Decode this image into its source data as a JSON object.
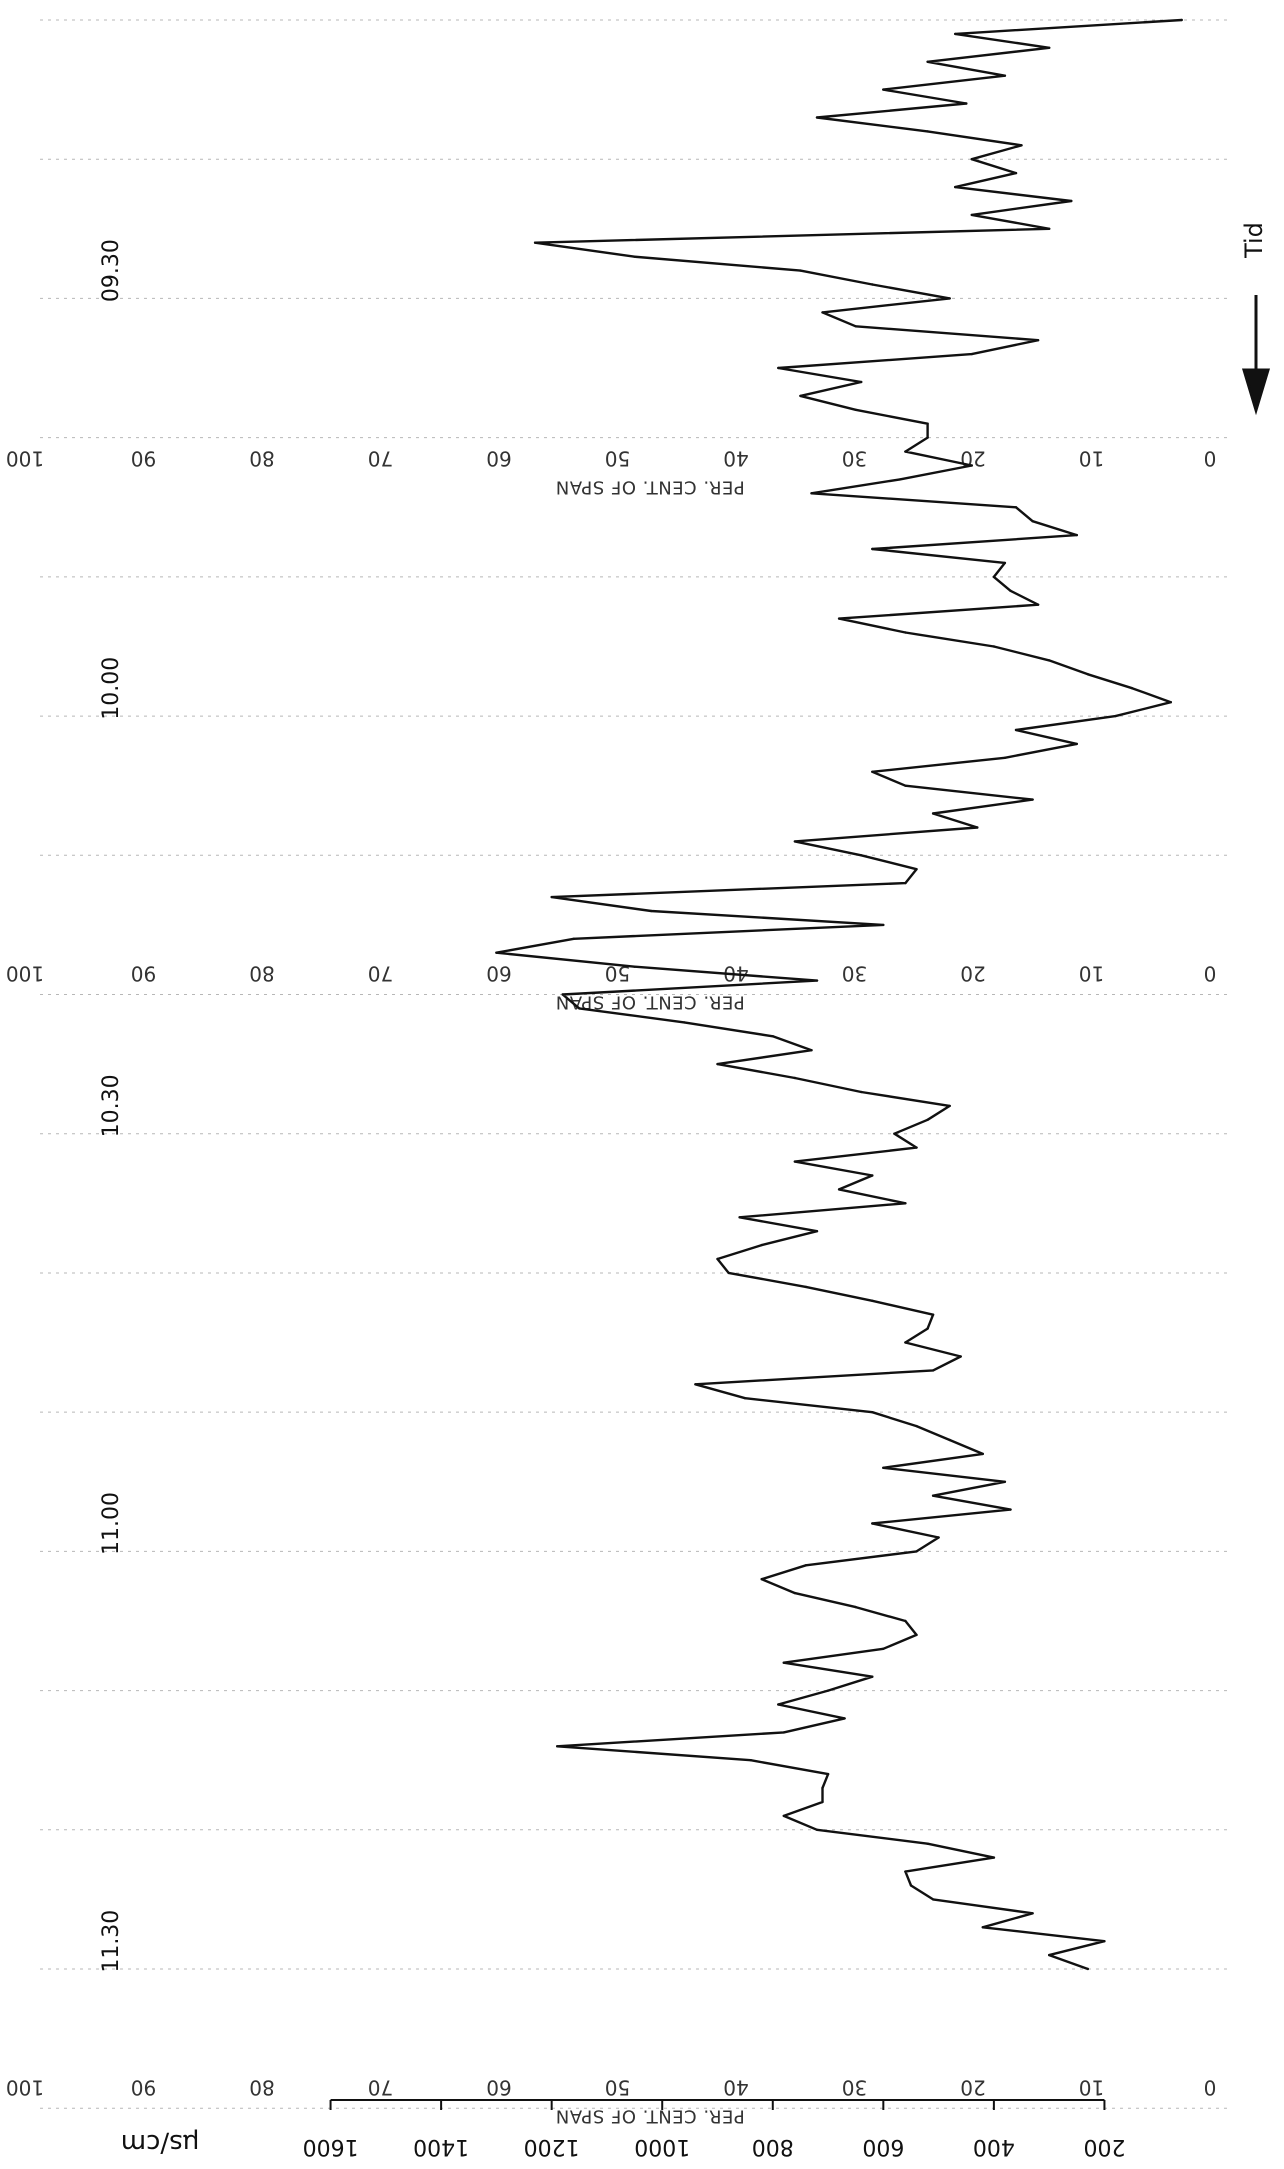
{
  "chart_data": {
    "type": "line",
    "orientation": "vertical-time",
    "title": "",
    "time_axis": {
      "label": "Tid",
      "direction": "top-to-bottom",
      "ticks": [
        "09.30",
        "10.00",
        "10.30",
        "11.00",
        "11.30"
      ],
      "range": [
        "09.12",
        "11.45"
      ]
    },
    "value_axis": {
      "unit": "µs/cm",
      "tick_labels": [
        "200",
        "400",
        "600",
        "800",
        "1000",
        "1200",
        "1400",
        "1600"
      ],
      "ticks": [
        200,
        400,
        600,
        800,
        1000,
        1200,
        1400,
        1600
      ],
      "range": [
        0,
        1800
      ]
    },
    "chart_paper_scale": {
      "caption": "PER. CENT. OF SPAN",
      "ticks": [
        "0",
        "10",
        "20",
        "30",
        "40",
        "50",
        "60",
        "70",
        "80",
        "90",
        "100"
      ]
    },
    "series": [
      {
        "name": "",
        "x_unit": "clock time",
        "points": [
          [
            "09.12",
            60
          ],
          [
            "09.13",
            470
          ],
          [
            "09.14",
            300
          ],
          [
            "09.15",
            520
          ],
          [
            "09.16",
            380
          ],
          [
            "09.17",
            600
          ],
          [
            "09.18",
            450
          ],
          [
            "09.19",
            720
          ],
          [
            "09.20",
            520
          ],
          [
            "09.21",
            350
          ],
          [
            "09.22",
            440
          ],
          [
            "09.23",
            360
          ],
          [
            "09.24",
            470
          ],
          [
            "09.25",
            260
          ],
          [
            "09.26",
            440
          ],
          [
            "09.27",
            300
          ],
          [
            "09.28",
            1230
          ],
          [
            "09.29",
            1050
          ],
          [
            "09.30",
            750
          ],
          [
            "09.31",
            620
          ],
          [
            "09.32",
            480
          ],
          [
            "09.33",
            710
          ],
          [
            "09.34",
            650
          ],
          [
            "09.35",
            320
          ],
          [
            "09.36",
            440
          ],
          [
            "09.37",
            790
          ],
          [
            "09.38",
            640
          ],
          [
            "09.39",
            750
          ],
          [
            "09.40",
            650
          ],
          [
            "09.41",
            520
          ],
          [
            "09.42",
            520
          ],
          [
            "09.43",
            560
          ],
          [
            "09.44",
            440
          ],
          [
            "09.45",
            570
          ],
          [
            "09.46",
            730
          ],
          [
            "09.47",
            360
          ],
          [
            "09.48",
            330
          ],
          [
            "09.49",
            250
          ],
          [
            "09.50",
            620
          ],
          [
            "09.51",
            380
          ],
          [
            "09.52",
            400
          ],
          [
            "09.53",
            370
          ],
          [
            "09.54",
            320
          ],
          [
            "09.55",
            680
          ],
          [
            "09.56",
            560
          ],
          [
            "09.57",
            400
          ],
          [
            "09.58",
            300
          ],
          [
            "09.59",
            230
          ],
          [
            "10.00",
            150
          ],
          [
            "10.01",
            80
          ],
          [
            "10.02",
            180
          ],
          [
            "10.03",
            360
          ],
          [
            "10.04",
            250
          ],
          [
            "10.05",
            380
          ],
          [
            "10.06",
            620
          ],
          [
            "10.07",
            560
          ],
          [
            "10.08",
            330
          ],
          [
            "10.09",
            510
          ],
          [
            "10.10",
            430
          ],
          [
            "10.11",
            760
          ],
          [
            "10.12",
            640
          ],
          [
            "10.13",
            540
          ],
          [
            "10.14",
            560
          ],
          [
            "10.15",
            1200
          ],
          [
            "10.16",
            1020
          ],
          [
            "10.17",
            600
          ],
          [
            "10.18",
            1160
          ],
          [
            "10.19",
            1300
          ],
          [
            "10.20",
            1050
          ],
          [
            "10.21",
            720
          ],
          [
            "10.22",
            1180
          ],
          [
            "10.23",
            1150
          ],
          [
            "10.24",
            960
          ],
          [
            "10.25",
            800
          ],
          [
            "10.26",
            730
          ],
          [
            "10.27",
            900
          ],
          [
            "10.28",
            760
          ],
          [
            "10.29",
            640
          ],
          [
            "10.30",
            480
          ],
          [
            "10.31",
            520
          ],
          [
            "10.32",
            580
          ],
          [
            "10.33",
            540
          ],
          [
            "10.34",
            760
          ],
          [
            "10.35",
            620
          ],
          [
            "10.36",
            680
          ],
          [
            "10.37",
            560
          ],
          [
            "10.38",
            860
          ],
          [
            "10.39",
            720
          ],
          [
            "10.40",
            820
          ],
          [
            "10.41",
            900
          ],
          [
            "10.42",
            880
          ],
          [
            "10.43",
            740
          ],
          [
            "10.44",
            620
          ],
          [
            "10.45",
            510
          ],
          [
            "10.46",
            520
          ],
          [
            "10.47",
            560
          ],
          [
            "10.48",
            460
          ],
          [
            "10.49",
            510
          ],
          [
            "10.50",
            940
          ],
          [
            "10.51",
            850
          ],
          [
            "10.52",
            620
          ],
          [
            "10.53",
            540
          ],
          [
            "10.54",
            480
          ],
          [
            "10.55",
            420
          ],
          [
            "10.56",
            600
          ],
          [
            "10.57",
            380
          ],
          [
            "10.58",
            510
          ],
          [
            "10.59",
            370
          ],
          [
            "11.00",
            620
          ],
          [
            "11.01",
            500
          ],
          [
            "11.02",
            540
          ],
          [
            "11.03",
            740
          ],
          [
            "11.04",
            820
          ],
          [
            "11.05",
            760
          ],
          [
            "11.06",
            650
          ],
          [
            "11.07",
            560
          ],
          [
            "11.08",
            540
          ],
          [
            "11.09",
            600
          ],
          [
            "11.10",
            780
          ],
          [
            "11.11",
            620
          ],
          [
            "11.12",
            700
          ],
          [
            "11.13",
            790
          ],
          [
            "11.14",
            670
          ],
          [
            "11.15",
            780
          ],
          [
            "11.16",
            1190
          ],
          [
            "11.17",
            840
          ],
          [
            "11.18",
            700
          ],
          [
            "11.19",
            710
          ],
          [
            "11.20",
            710
          ],
          [
            "11.21",
            780
          ],
          [
            "11.22",
            720
          ],
          [
            "11.23",
            520
          ],
          [
            "11.24",
            400
          ],
          [
            "11.25",
            560
          ],
          [
            "11.26",
            550
          ],
          [
            "11.27",
            510
          ],
          [
            "11.28",
            330
          ],
          [
            "11.29",
            420
          ],
          [
            "11.30",
            200
          ],
          [
            "11.31",
            300
          ],
          [
            "11.32",
            230
          ]
        ]
      }
    ],
    "grid": true,
    "legend": "none"
  },
  "colors": {
    "trace": "#111111",
    "grid": "#9a9a9a",
    "paper": "#ffffff"
  },
  "icons": {
    "time-arrow": "down-arrow-icon"
  }
}
